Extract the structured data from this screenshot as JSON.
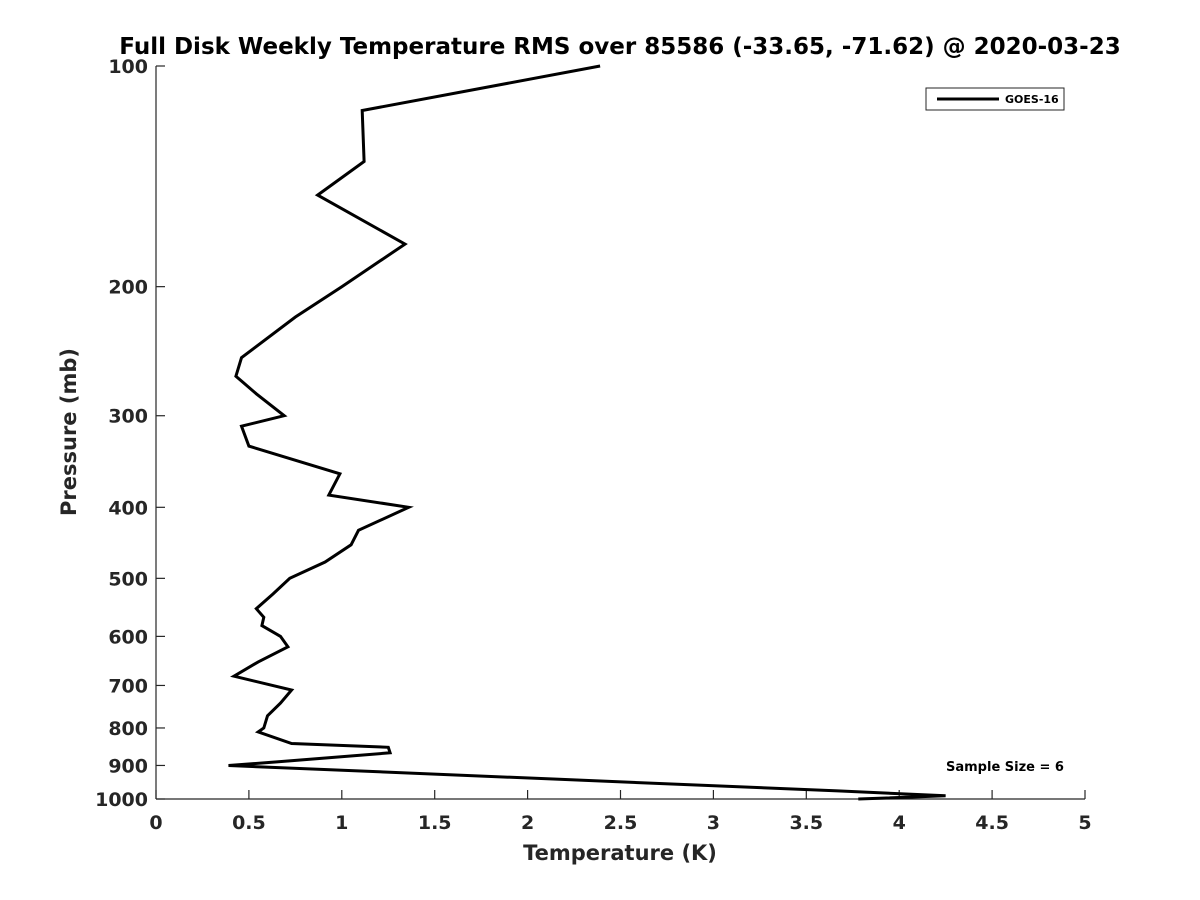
{
  "chart_data": {
    "type": "line",
    "title": "Full Disk Weekly Temperature RMS over 85586 (-33.65, -71.62) @ 2020-03-23",
    "xlabel": "Temperature (K)",
    "ylabel": "Pressure (mb)",
    "xlim": [
      0,
      5
    ],
    "ylim": [
      100,
      1000
    ],
    "y_scale": "log",
    "y_inverted": true,
    "x_ticks": [
      "0",
      "0.5",
      "1",
      "1.5",
      "2",
      "2.5",
      "3",
      "3.5",
      "4",
      "4.5",
      "5"
    ],
    "y_ticks": [
      "100",
      "200",
      "300",
      "400",
      "500",
      "600",
      "700",
      "800",
      "900",
      "1000"
    ],
    "grid": false,
    "legend": {
      "position": "top-right",
      "entries": [
        "GOES-16"
      ]
    },
    "annotations": [
      {
        "text": "Sample Size = 6"
      }
    ],
    "series": [
      {
        "name": "GOES-16",
        "color": "#000000",
        "x": [
          2.39,
          1.11,
          1.12,
          0.87,
          1.34,
          1.0,
          0.75,
          0.46,
          0.43,
          0.54,
          0.69,
          0.46,
          0.5,
          0.99,
          0.93,
          1.36,
          1.09,
          1.05,
          0.91,
          0.72,
          0.63,
          0.54,
          0.58,
          0.57,
          0.67,
          0.71,
          0.55,
          0.42,
          0.73,
          0.67,
          0.6,
          0.58,
          0.55,
          0.73,
          1.25,
          1.26,
          0.65,
          0.39,
          2.17,
          3.67,
          4.25,
          3.78
        ],
        "y": [
          100,
          115,
          135,
          150,
          175,
          200,
          220,
          250,
          265,
          280,
          300,
          310,
          330,
          360,
          385,
          400,
          430,
          450,
          475,
          500,
          525,
          550,
          565,
          580,
          600,
          620,
          650,
          680,
          710,
          740,
          770,
          800,
          810,
          840,
          850,
          865,
          890,
          900,
          940,
          975,
          990,
          1000
        ]
      }
    ]
  }
}
